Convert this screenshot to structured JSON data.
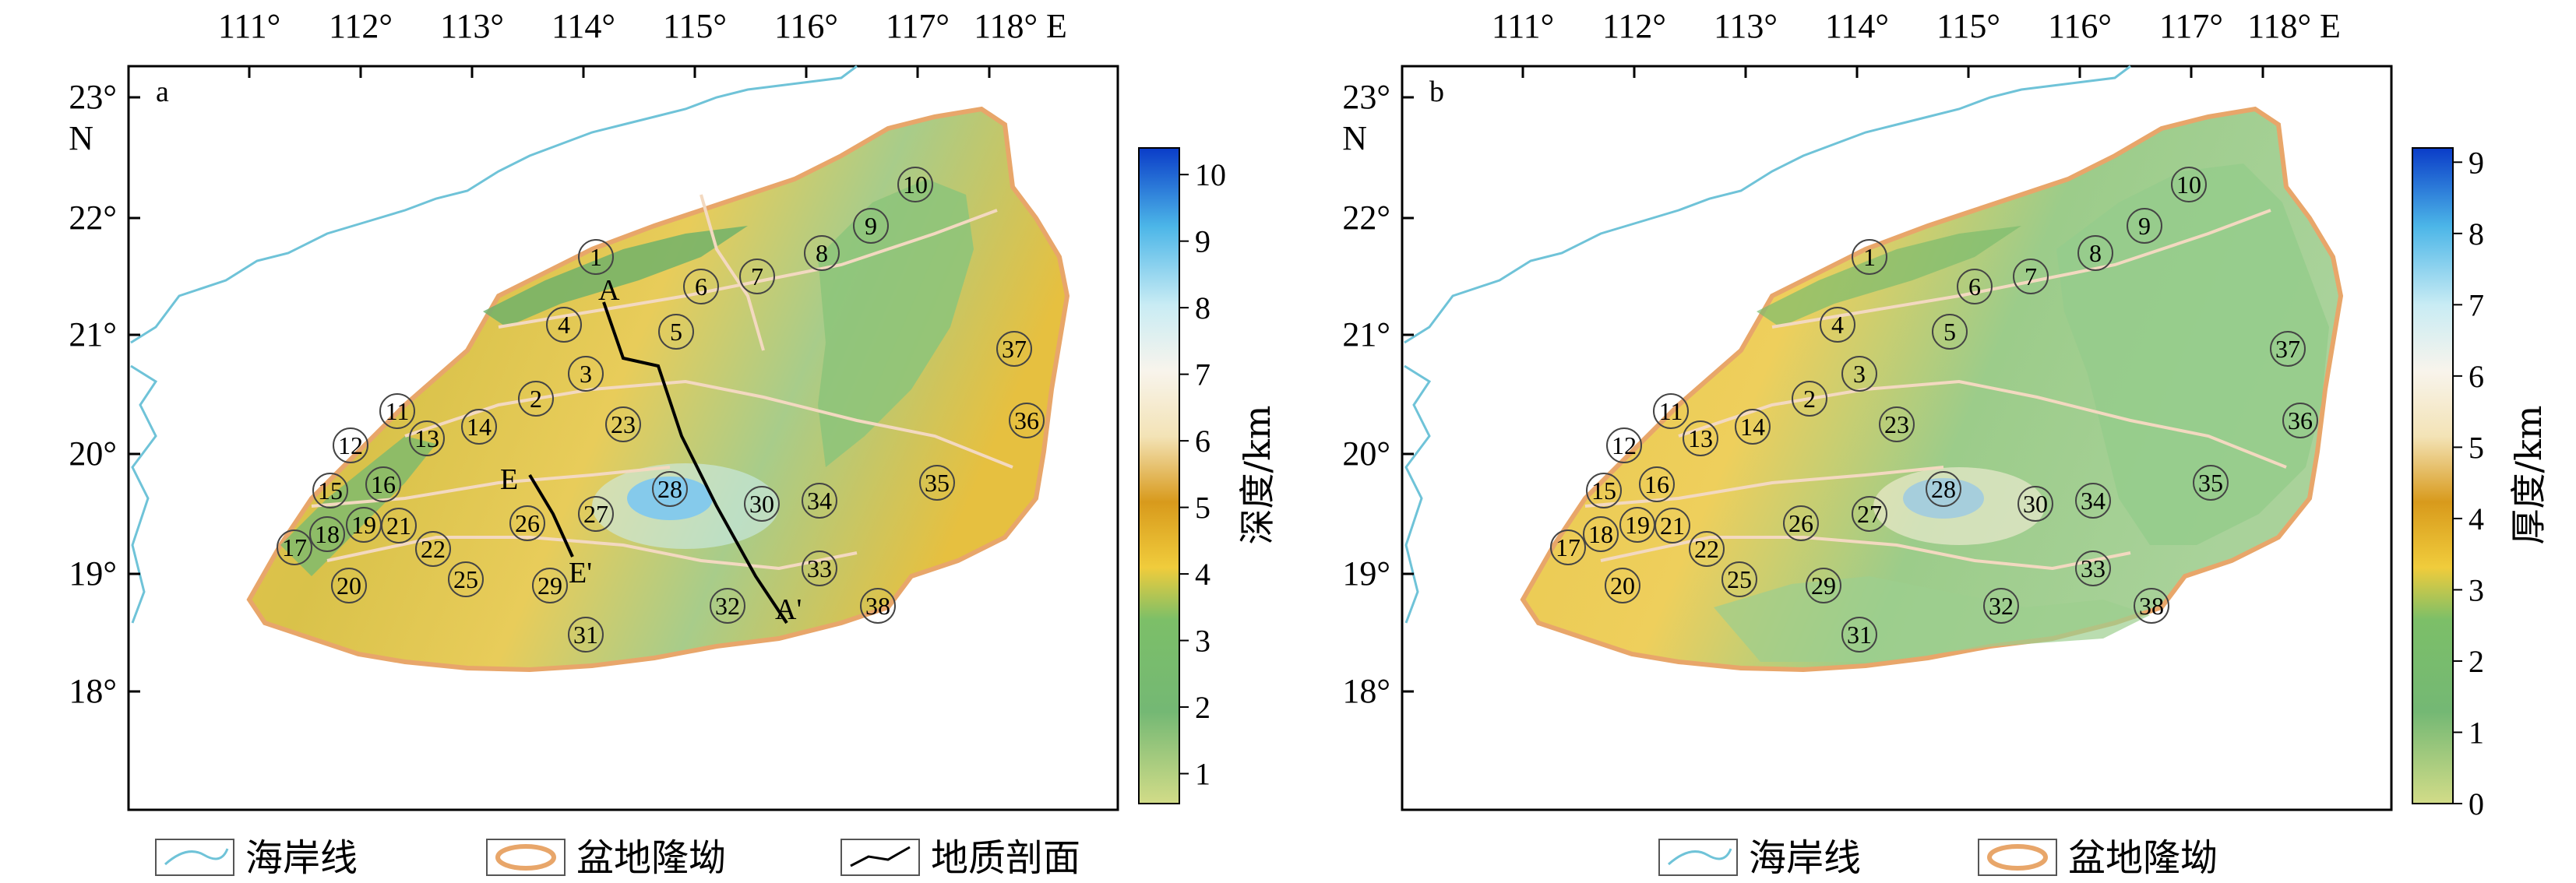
{
  "panels": [
    {
      "id": "a",
      "label": "a",
      "colorbar_title": "深度/km",
      "colorbar_ticks": [
        "1",
        "2",
        "3",
        "4",
        "5",
        "6",
        "7",
        "8",
        "9",
        "10"
      ],
      "show_profile": true,
      "profiles": [
        {
          "start": "A",
          "end": "A'"
        },
        {
          "start": "E",
          "end": "E'"
        }
      ]
    },
    {
      "id": "b",
      "label": "b",
      "colorbar_title": "厚度/km",
      "colorbar_ticks": [
        "0",
        "1",
        "2",
        "3",
        "4",
        "5",
        "6",
        "7",
        "8",
        "9"
      ],
      "show_profile": false,
      "profiles": []
    }
  ],
  "axes": {
    "lon_ticks": [
      "111°",
      "112°",
      "113°",
      "114°",
      "115°",
      "116°",
      "117°",
      "118° E"
    ],
    "lat_ticks": [
      "23°",
      "N",
      "22°",
      "21°",
      "20°",
      "19°",
      "18°"
    ]
  },
  "basin_numbers": [
    "1",
    "2",
    "3",
    "4",
    "5",
    "6",
    "7",
    "8",
    "9",
    "10",
    "11",
    "12",
    "13",
    "14",
    "15",
    "16",
    "17",
    "18",
    "19",
    "20",
    "21",
    "22",
    "23",
    "25",
    "26",
    "27",
    "28",
    "29",
    "30",
    "31",
    "32",
    "33",
    "34",
    "35",
    "36",
    "37",
    "38"
  ],
  "legend_a": {
    "coastline": "海岸线",
    "basin_boundary": "盆地隆坳",
    "geologic_profile": "地质剖面"
  },
  "legend_b": {
    "coastline": "海岸线",
    "basin_boundary": "盆地隆坳"
  },
  "colors": {
    "coast": "#6fc3d8",
    "basin_outline": "#e8a66a",
    "colormap": [
      "#c8d67a",
      "#6ab06a",
      "#e8c040",
      "#f0a818",
      "#f4e2b0",
      "#bfe8f0",
      "#34a8e4",
      "#0a3cc8"
    ]
  }
}
